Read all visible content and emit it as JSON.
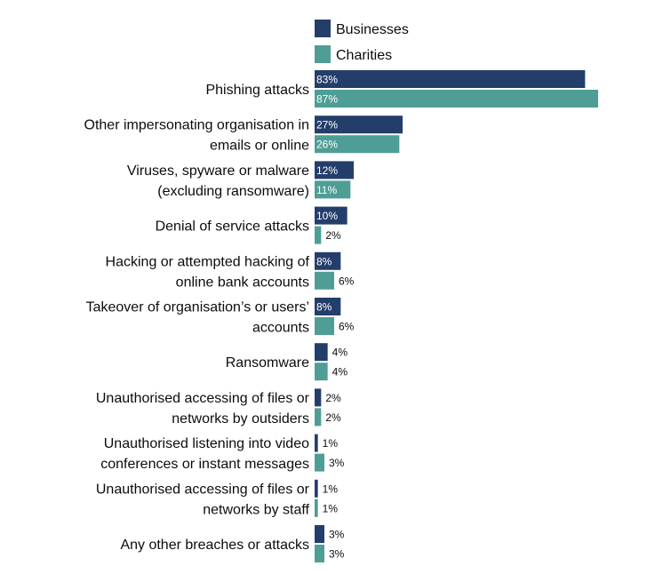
{
  "chart_data": {
    "type": "bar",
    "orientation": "horizontal",
    "series": [
      {
        "name": "Businesses",
        "color": "#243e6b",
        "values": [
          83,
          27,
          12,
          10,
          8,
          8,
          4,
          2,
          1,
          1,
          3
        ],
        "labels": [
          "83%",
          "27%",
          "12%",
          "10%",
          "8%",
          "8%",
          "4%",
          "2%",
          "1%",
          "1%",
          "3%"
        ]
      },
      {
        "name": "Charities",
        "color": "#4f9e95",
        "values": [
          87,
          26,
          11,
          2,
          6,
          6,
          4,
          2,
          3,
          1,
          3
        ],
        "labels": [
          "87%",
          "26%",
          "11%",
          "2%",
          "6%",
          "6%",
          "4%",
          "2%",
          "3%",
          "1%",
          "3%"
        ]
      }
    ],
    "categories": [
      [
        "Phishing attacks"
      ],
      [
        "Other impersonating organisation in",
        "emails or online"
      ],
      [
        "Viruses, spyware or malware",
        "(excluding ransomware)"
      ],
      [
        "Denial of service attacks"
      ],
      [
        "Hacking or attempted hacking of",
        "online bank accounts"
      ],
      [
        "Takeover of organisation’s or users’",
        "accounts"
      ],
      [
        "Ransomware"
      ],
      [
        "Unauthorised accessing of files or",
        "networks by outsiders"
      ],
      [
        "Unauthorised listening into video",
        "conferences or instant messages"
      ],
      [
        "Unauthorised accessing of files or",
        "networks by staff"
      ],
      [
        "Any other breaches or attacks"
      ]
    ],
    "xlim": [
      0,
      87
    ],
    "value_unit": "%",
    "legend_position": "top",
    "grid": false,
    "axes_visible": false
  }
}
